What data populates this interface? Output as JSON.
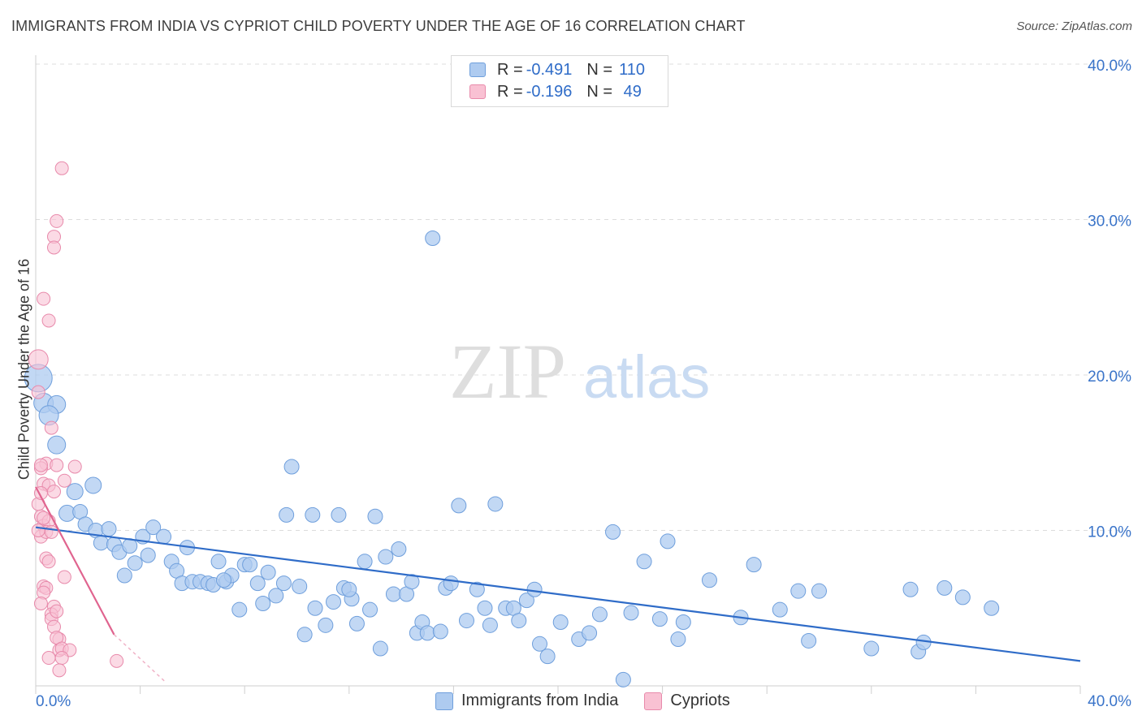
{
  "title": "IMMIGRANTS FROM INDIA VS CYPRIOT CHILD POVERTY UNDER THE AGE OF 16 CORRELATION CHART",
  "source": "Source: ZipAtlas.com",
  "watermark": {
    "zip": "ZIP",
    "atlas": "atlas"
  },
  "legend": {
    "rows": [
      {
        "r_label": "R =",
        "r_value": "-0.491",
        "n_label": "N =",
        "n_value": "110",
        "color": "#aecbf0",
        "border": "#6f9fdc"
      },
      {
        "r_label": "R =",
        "r_value": "-0.196",
        "n_label": "N =",
        "n_value": " 49",
        "color": "#f9c1d3",
        "border": "#e88aab"
      }
    ]
  },
  "bottom_legend": {
    "items": [
      {
        "label": "Immigrants from India",
        "color": "#aecbf0",
        "border": "#6f9fdc"
      },
      {
        "label": "Cypriots",
        "color": "#f9c1d3",
        "border": "#e88aab"
      }
    ]
  },
  "chart_data": {
    "type": "scatter",
    "title": "IMMIGRANTS FROM INDIA VS CYPRIOT CHILD POVERTY UNDER THE AGE OF 16 CORRELATION CHART",
    "xlabel": "",
    "ylabel": "Child Poverty Under the Age of 16",
    "xlim": [
      0,
      40
    ],
    "ylim": [
      0,
      40
    ],
    "x_tick_labels": [
      "0.0%",
      "40.0%"
    ],
    "y_tick_labels": [
      "10.0%",
      "20.0%",
      "30.0%",
      "40.0%"
    ],
    "y_ticks": [
      10,
      20,
      30,
      40
    ],
    "grid": true,
    "legend_position": "top-center",
    "colors": {
      "india": "#6f9fdc",
      "india_fill": "#aecbf0",
      "cyprus": "#e88aab",
      "cyprus_fill": "#f9c1d3",
      "india_line": "#2f6cc8",
      "cyprus_line": "#e0648f",
      "axis_text": "#3a74c9"
    },
    "series": [
      {
        "name": "Immigrants from India",
        "trend": [
          [
            0,
            10.2
          ],
          [
            40,
            1.6
          ]
        ],
        "points": [
          [
            0.1,
            19.8
          ],
          [
            0.3,
            18.2
          ],
          [
            0.8,
            18.1
          ],
          [
            0.5,
            17.4
          ],
          [
            0.8,
            15.5
          ],
          [
            1.5,
            12.5
          ],
          [
            2.2,
            12.9
          ],
          [
            1.2,
            11.1
          ],
          [
            1.7,
            11.2
          ],
          [
            1.9,
            10.4
          ],
          [
            2.3,
            10.0
          ],
          [
            2.8,
            10.1
          ],
          [
            2.5,
            9.2
          ],
          [
            3.0,
            9.1
          ],
          [
            3.2,
            8.6
          ],
          [
            3.6,
            9.0
          ],
          [
            4.1,
            9.6
          ],
          [
            4.5,
            10.2
          ],
          [
            3.4,
            7.1
          ],
          [
            3.8,
            7.9
          ],
          [
            4.3,
            8.4
          ],
          [
            4.9,
            9.6
          ],
          [
            5.2,
            8.0
          ],
          [
            5.4,
            7.4
          ],
          [
            5.6,
            6.6
          ],
          [
            5.8,
            8.9
          ],
          [
            6.0,
            6.7
          ],
          [
            6.3,
            6.7
          ],
          [
            6.6,
            6.6
          ],
          [
            6.8,
            6.5
          ],
          [
            7.0,
            8.0
          ],
          [
            7.3,
            6.7
          ],
          [
            7.5,
            7.1
          ],
          [
            7.8,
            4.9
          ],
          [
            8.0,
            7.8
          ],
          [
            8.2,
            7.8
          ],
          [
            8.5,
            6.6
          ],
          [
            8.7,
            5.3
          ],
          [
            8.9,
            7.3
          ],
          [
            9.2,
            5.8
          ],
          [
            9.5,
            6.6
          ],
          [
            9.6,
            11.0
          ],
          [
            9.8,
            14.1
          ],
          [
            10.1,
            6.4
          ],
          [
            10.3,
            3.3
          ],
          [
            10.6,
            11.0
          ],
          [
            10.7,
            5.0
          ],
          [
            11.1,
            3.9
          ],
          [
            11.4,
            5.4
          ],
          [
            11.6,
            11.0
          ],
          [
            11.8,
            6.3
          ],
          [
            12.1,
            5.6
          ],
          [
            12.3,
            4.0
          ],
          [
            12.6,
            8.0
          ],
          [
            12.8,
            4.9
          ],
          [
            13.0,
            10.9
          ],
          [
            13.2,
            2.4
          ],
          [
            13.4,
            8.3
          ],
          [
            13.7,
            5.9
          ],
          [
            13.9,
            8.8
          ],
          [
            14.2,
            5.9
          ],
          [
            14.4,
            6.7
          ],
          [
            14.6,
            3.4
          ],
          [
            14.8,
            4.1
          ],
          [
            15.0,
            3.4
          ],
          [
            15.2,
            28.8
          ],
          [
            15.5,
            3.5
          ],
          [
            15.7,
            6.3
          ],
          [
            15.9,
            6.6
          ],
          [
            16.2,
            11.6
          ],
          [
            16.5,
            4.2
          ],
          [
            16.9,
            6.2
          ],
          [
            17.2,
            5.0
          ],
          [
            17.4,
            3.9
          ],
          [
            17.6,
            11.7
          ],
          [
            18.0,
            5.0
          ],
          [
            18.3,
            5.0
          ],
          [
            18.5,
            4.2
          ],
          [
            18.8,
            5.5
          ],
          [
            19.1,
            6.2
          ],
          [
            19.3,
            2.7
          ],
          [
            19.6,
            1.9
          ],
          [
            20.1,
            4.1
          ],
          [
            20.8,
            3.0
          ],
          [
            21.2,
            3.4
          ],
          [
            21.6,
            4.6
          ],
          [
            22.1,
            9.9
          ],
          [
            22.5,
            0.4
          ],
          [
            22.8,
            4.7
          ],
          [
            23.3,
            8.0
          ],
          [
            23.9,
            4.3
          ],
          [
            24.2,
            9.3
          ],
          [
            24.6,
            3.0
          ],
          [
            24.8,
            4.1
          ],
          [
            25.8,
            6.8
          ],
          [
            27.0,
            4.4
          ],
          [
            27.5,
            7.8
          ],
          [
            28.5,
            4.9
          ],
          [
            29.2,
            6.1
          ],
          [
            29.6,
            2.9
          ],
          [
            30.0,
            6.1
          ],
          [
            32.0,
            2.4
          ],
          [
            33.5,
            6.2
          ],
          [
            33.8,
            2.2
          ],
          [
            34.0,
            2.8
          ],
          [
            34.8,
            6.3
          ],
          [
            35.5,
            5.7
          ],
          [
            36.6,
            5.0
          ],
          [
            12.0,
            6.2
          ],
          [
            7.2,
            6.8
          ]
        ]
      },
      {
        "name": "Cypriots",
        "trend": [
          [
            0,
            12.8
          ],
          [
            3.0,
            3.3
          ]
        ],
        "trend_dashed": [
          [
            3.0,
            3.3
          ],
          [
            5.0,
            0.2
          ]
        ],
        "points": [
          [
            0.1,
            21.0
          ],
          [
            0.1,
            18.9
          ],
          [
            0.4,
            14.3
          ],
          [
            0.6,
            16.6
          ],
          [
            0.2,
            14.0
          ],
          [
            0.3,
            13.0
          ],
          [
            0.5,
            12.9
          ],
          [
            0.7,
            12.5
          ],
          [
            0.1,
            11.7
          ],
          [
            0.2,
            10.9
          ],
          [
            0.3,
            10.3
          ],
          [
            0.5,
            10.6
          ],
          [
            0.2,
            9.6
          ],
          [
            0.4,
            9.9
          ],
          [
            0.6,
            9.9
          ],
          [
            0.8,
            14.2
          ],
          [
            1.1,
            13.2
          ],
          [
            1.5,
            14.1
          ],
          [
            1.0,
            33.3
          ],
          [
            0.8,
            29.9
          ],
          [
            0.7,
            28.9
          ],
          [
            0.7,
            28.2
          ],
          [
            0.3,
            24.9
          ],
          [
            0.5,
            23.5
          ],
          [
            0.4,
            8.2
          ],
          [
            0.5,
            8.0
          ],
          [
            1.1,
            7.0
          ],
          [
            0.3,
            6.4
          ],
          [
            0.4,
            6.3
          ],
          [
            0.3,
            6.0
          ],
          [
            0.2,
            5.3
          ],
          [
            0.7,
            5.1
          ],
          [
            0.6,
            4.6
          ],
          [
            0.6,
            4.3
          ],
          [
            0.8,
            4.8
          ],
          [
            0.7,
            3.8
          ],
          [
            0.9,
            3.0
          ],
          [
            0.8,
            3.1
          ],
          [
            0.9,
            2.3
          ],
          [
            1.0,
            2.4
          ],
          [
            1.3,
            2.3
          ],
          [
            0.5,
            1.8
          ],
          [
            1.0,
            1.8
          ],
          [
            0.9,
            1.0
          ],
          [
            3.1,
            1.6
          ],
          [
            0.2,
            14.2
          ],
          [
            0.3,
            10.8
          ],
          [
            0.1,
            10.0
          ],
          [
            0.2,
            12.4
          ]
        ]
      }
    ]
  }
}
